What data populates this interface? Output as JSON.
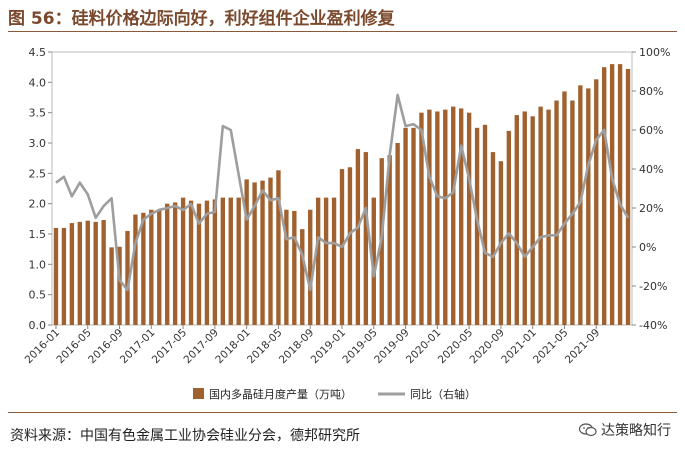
{
  "title": "图 56：硅料价格边际向好，利好组件企业盈利修复",
  "source": "资料来源：中国有色金属工业协会硅业分会，德邦研究所",
  "watermark": "达策略知行",
  "colors": {
    "bar": "#a0612f",
    "line": "#9e9e9e",
    "title": "#7b4a2e"
  },
  "chart_data": {
    "type": "bar",
    "x_tick_labels": [
      "2016-01",
      "2016-05",
      "2016-09",
      "2017-01",
      "2017-05",
      "2017-09",
      "2018-01",
      "2018-05",
      "2018-09",
      "2019-01",
      "2019-05",
      "2019-09",
      "2020-01",
      "2020-05",
      "2020-09",
      "2021-01",
      "2021-05",
      "2021-09"
    ],
    "x_tick_step": 4,
    "left_axis": {
      "ylim": [
        0,
        4.5
      ],
      "ticks": [
        "0.0",
        "0.5",
        "1.0",
        "1.5",
        "2.0",
        "2.5",
        "3.0",
        "3.5",
        "4.0",
        "4.5"
      ]
    },
    "right_axis": {
      "ylim": [
        -40,
        100
      ],
      "ticks": [
        "-40%",
        "-20%",
        "0%",
        "20%",
        "40%",
        "60%",
        "80%",
        "100%"
      ]
    },
    "legend": {
      "placement": "bottom",
      "bar_label": "国内多晶硅月度产量（万吨）",
      "line_label": "同比（右轴）"
    },
    "series": [
      {
        "name": "国内多晶硅月度产量（万吨）",
        "kind": "bar",
        "axis": "left",
        "values": [
          1.6,
          1.6,
          1.68,
          1.7,
          1.72,
          1.7,
          1.73,
          1.28,
          1.29,
          1.55,
          1.82,
          1.85,
          1.9,
          1.9,
          2.0,
          2.02,
          2.1,
          2.05,
          2.0,
          2.05,
          2.07,
          2.1,
          2.1,
          2.1,
          2.4,
          2.35,
          2.38,
          2.43,
          2.55,
          1.9,
          1.88,
          1.58,
          1.9,
          2.1,
          2.1,
          2.1,
          2.57,
          2.6,
          2.9,
          2.85,
          2.1,
          2.75,
          2.8,
          3.0,
          3.25,
          3.25,
          3.5,
          3.55,
          3.52,
          3.55,
          3.6,
          3.57,
          3.5,
          3.25,
          3.3,
          2.85,
          2.7,
          3.2,
          3.46,
          3.52,
          3.44,
          3.6,
          3.55,
          3.7,
          3.85,
          3.7,
          3.95,
          3.9,
          4.05,
          4.25,
          4.3,
          4.3,
          4.22
        ]
      },
      {
        "name": "同比（右轴）",
        "kind": "line",
        "axis": "right",
        "values": [
          33,
          36,
          26,
          33,
          27,
          15,
          21,
          25,
          -17,
          -22,
          2,
          14,
          17,
          19,
          20,
          21,
          19,
          22,
          12,
          17,
          18,
          62,
          60,
          37,
          14,
          21,
          29,
          24,
          25,
          4,
          5,
          -4,
          -22,
          5,
          2,
          2,
          0,
          7,
          10,
          20,
          -15,
          5,
          47,
          78,
          62,
          63,
          60,
          36,
          26,
          25,
          28,
          52,
          35,
          14,
          -3,
          -5,
          2,
          7,
          2,
          -5,
          0,
          5,
          6,
          6,
          12,
          17,
          23,
          42,
          55,
          60,
          35,
          22,
          15
        ]
      }
    ]
  }
}
